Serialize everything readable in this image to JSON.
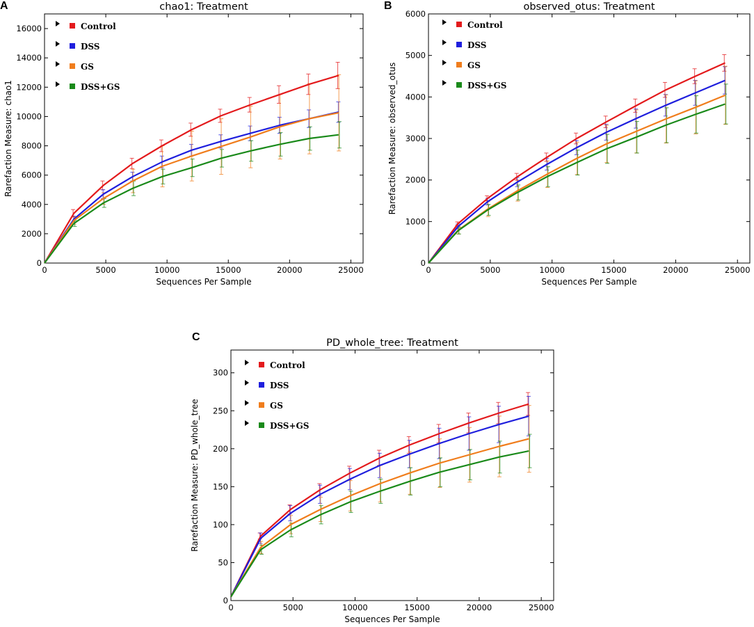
{
  "panels": [
    {
      "letter": "A"
    },
    {
      "letter": "B"
    },
    {
      "letter": "C"
    }
  ],
  "chart_data": [
    {
      "type": "line",
      "title": "chao1: Treatment",
      "xlabel": "Sequences Per Sample",
      "ylabel": "Rarefaction Measure: chao1",
      "xlim": [
        0,
        26000
      ],
      "ylim": [
        0,
        17000
      ],
      "xticks": [
        0,
        5000,
        10000,
        15000,
        20000,
        25000
      ],
      "yticks": [
        0,
        2000,
        4000,
        6000,
        8000,
        10000,
        12000,
        14000,
        16000
      ],
      "x": [
        0,
        2400,
        4800,
        7200,
        9600,
        12000,
        14400,
        16800,
        19200,
        21600,
        24000
      ],
      "series": [
        {
          "name": "Control",
          "color": "#e31a1c",
          "values": [
            0,
            3400,
            5300,
            6800,
            8000,
            9100,
            10050,
            10800,
            11500,
            12200,
            12800
          ],
          "errors": [
            0,
            250,
            300,
            350,
            400,
            450,
            450,
            500,
            600,
            700,
            900
          ]
        },
        {
          "name": "DSS",
          "color": "#1f1fdd",
          "values": [
            0,
            3000,
            4700,
            5900,
            6900,
            7700,
            8300,
            8850,
            9400,
            9850,
            10300
          ],
          "errors": [
            0,
            200,
            300,
            300,
            400,
            400,
            450,
            500,
            550,
            600,
            700
          ]
        },
        {
          "name": "GS",
          "color": "#f07d1c",
          "values": [
            0,
            2900,
            4400,
            5600,
            6600,
            7300,
            7950,
            8600,
            9300,
            9850,
            10250
          ],
          "errors": [
            0,
            250,
            400,
            800,
            1400,
            1700,
            1900,
            2100,
            2200,
            2400,
            2600
          ]
        },
        {
          "name": "DSS+GS",
          "color": "#1a8a1a",
          "values": [
            0,
            2700,
            4100,
            5100,
            5900,
            6500,
            7150,
            7650,
            8100,
            8500,
            8750
          ],
          "errors": [
            0,
            200,
            300,
            500,
            500,
            600,
            600,
            700,
            800,
            800,
            900
          ]
        }
      ]
    },
    {
      "type": "line",
      "title": "observed_otus: Treatment",
      "xlabel": "Sequences Per Sample",
      "ylabel": "Rarefaction Measure: observed_otus",
      "xlim": [
        0,
        26000
      ],
      "ylim": [
        0,
        6000
      ],
      "xticks": [
        0,
        5000,
        10000,
        15000,
        20000,
        25000
      ],
      "yticks": [
        0,
        1000,
        2000,
        3000,
        4000,
        5000,
        6000
      ],
      "x": [
        0,
        2400,
        4800,
        7200,
        9600,
        12000,
        14400,
        16800,
        19200,
        21600,
        24000
      ],
      "series": [
        {
          "name": "Control",
          "color": "#e31a1c",
          "values": [
            0,
            950,
            1560,
            2080,
            2550,
            3000,
            3400,
            3790,
            4170,
            4500,
            4820
          ],
          "errors": [
            0,
            40,
            60,
            80,
            100,
            130,
            140,
            160,
            180,
            180,
            200
          ]
        },
        {
          "name": "DSS",
          "color": "#1f1fdd",
          "values": [
            0,
            880,
            1480,
            1950,
            2380,
            2780,
            3150,
            3480,
            3800,
            4100,
            4400
          ],
          "errors": [
            0,
            60,
            80,
            110,
            140,
            170,
            190,
            230,
            260,
            300,
            330
          ]
        },
        {
          "name": "GS",
          "color": "#f07d1c",
          "values": [
            0,
            790,
            1300,
            1740,
            2140,
            2520,
            2870,
            3170,
            3470,
            3750,
            4040
          ],
          "errors": [
            0,
            90,
            180,
            250,
            320,
            390,
            450,
            520,
            580,
            640,
            700
          ]
        },
        {
          "name": "DSS+GS",
          "color": "#1a8a1a",
          "values": [
            0,
            780,
            1280,
            1700,
            2080,
            2420,
            2750,
            3030,
            3320,
            3580,
            3830
          ],
          "errors": [
            0,
            80,
            130,
            180,
            240,
            300,
            350,
            380,
            420,
            450,
            480
          ]
        }
      ]
    },
    {
      "type": "line",
      "title": "PD_whole_tree: Treatment",
      "xlabel": "Sequences Per Sample",
      "ylabel": "Rarefaction Measure: PD_whole_tree",
      "xlim": [
        0,
        26000
      ],
      "ylim": [
        0,
        330
      ],
      "xticks": [
        0,
        5000,
        10000,
        15000,
        20000,
        25000
      ],
      "yticks": [
        0,
        50,
        100,
        150,
        200,
        250,
        300
      ],
      "x": [
        0,
        2400,
        4800,
        7200,
        9600,
        12000,
        14400,
        16800,
        19200,
        21600,
        24000
      ],
      "series": [
        {
          "name": "Control",
          "color": "#e31a1c",
          "values": [
            5,
            85,
            120,
            146,
            168,
            188,
            205,
            220,
            234,
            247,
            259
          ],
          "errors": [
            0,
            4,
            6,
            8,
            9,
            10,
            11,
            12,
            13,
            14,
            15
          ]
        },
        {
          "name": "DSS",
          "color": "#1f1fdd",
          "values": [
            5,
            82,
            115,
            140,
            160,
            178,
            193,
            207,
            220,
            232,
            243
          ],
          "errors": [
            0,
            7,
            10,
            12,
            14,
            16,
            18,
            20,
            22,
            24,
            26
          ]
        },
        {
          "name": "GS",
          "color": "#f07d1c",
          "values": [
            5,
            70,
            100,
            120,
            138,
            154,
            168,
            181,
            192,
            203,
            213
          ],
          "errors": [
            0,
            8,
            12,
            16,
            20,
            24,
            28,
            32,
            36,
            40,
            44
          ]
        },
        {
          "name": "DSS+GS",
          "color": "#1a8a1a",
          "values": [
            5,
            67,
            93,
            113,
            130,
            144,
            157,
            169,
            179,
            189,
            197
          ],
          "errors": [
            0,
            6,
            9,
            12,
            14,
            16,
            18,
            19,
            20,
            21,
            22
          ]
        }
      ]
    }
  ]
}
